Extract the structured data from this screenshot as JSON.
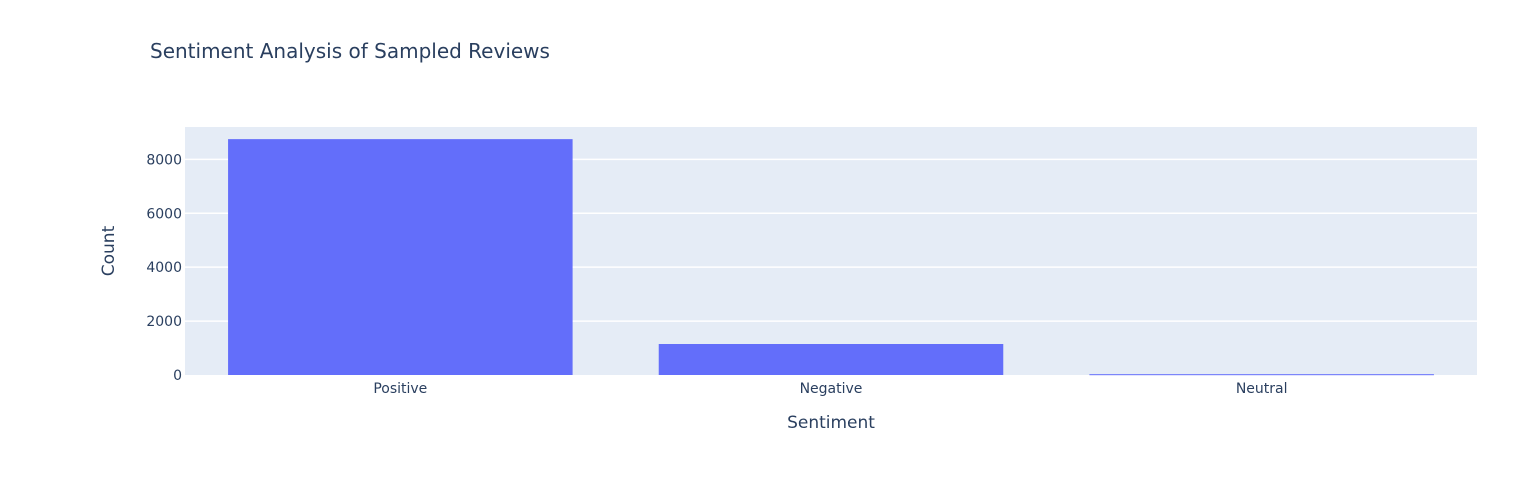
{
  "chart_data": {
    "type": "bar",
    "title": "Sentiment Analysis of Sampled Reviews",
    "xlabel": "Sentiment",
    "ylabel": "Count",
    "categories": [
      "Positive",
      "Negative",
      "Neutral"
    ],
    "values": [
      8750,
      1150,
      30
    ],
    "ylim": [
      0,
      9200
    ],
    "yticks": [
      0,
      2000,
      4000,
      6000,
      8000
    ],
    "ytick_labels": [
      "0",
      "2000",
      "4000",
      "6000",
      "8000"
    ],
    "grid": true,
    "legend": "none",
    "colors": {
      "bar": "#636efa",
      "plot_background": "#e5ecf6",
      "grid": "#ffffff",
      "text": "#2a3f5f"
    }
  }
}
